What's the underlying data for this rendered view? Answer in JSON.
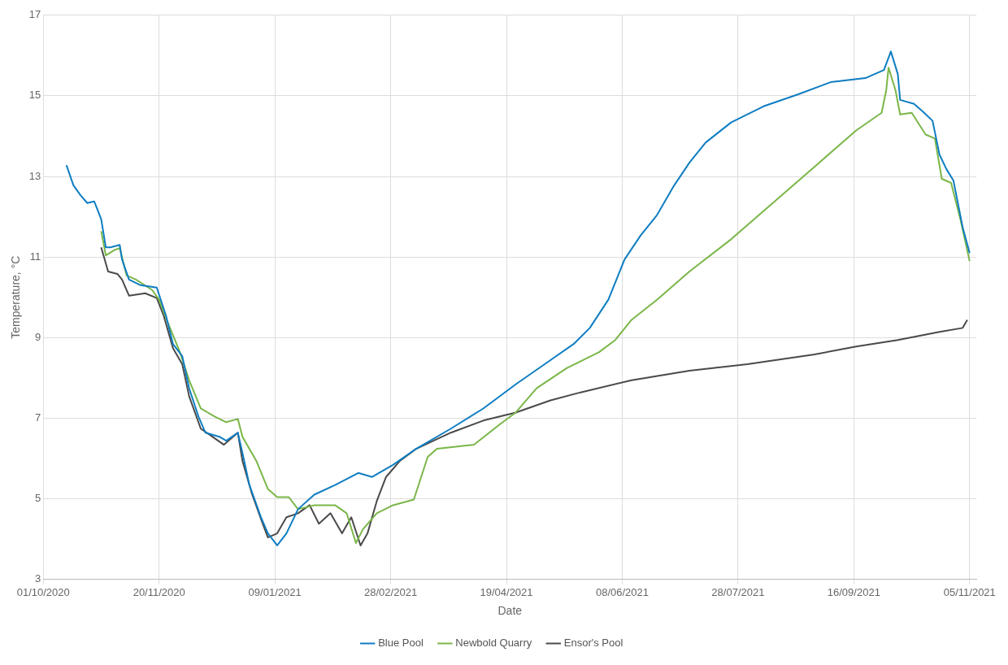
{
  "chart_data": {
    "type": "line",
    "xlabel": "Date",
    "ylabel": "Temperature, °C",
    "xlim": [
      "2020-10-01",
      "2021-11-08"
    ],
    "xticks": [
      {
        "value": "2020-10-01",
        "label": "01/10/2020"
      },
      {
        "value": "2020-11-20",
        "label": "20/11/2020"
      },
      {
        "value": "2021-01-09",
        "label": "09/01/2021"
      },
      {
        "value": "2021-02-28",
        "label": "28/02/2021"
      },
      {
        "value": "2021-04-19",
        "label": "19/04/2021"
      },
      {
        "value": "2021-06-08",
        "label": "08/06/2021"
      },
      {
        "value": "2021-07-28",
        "label": "28/07/2021"
      },
      {
        "value": "2021-09-16",
        "label": "16/09/2021"
      },
      {
        "value": "2021-11-05",
        "label": "05/11/2021"
      }
    ],
    "ylim": [
      3,
      17
    ],
    "yticks": [
      3,
      5,
      7,
      9,
      11,
      13,
      15,
      17
    ],
    "grid": true,
    "legend": "bottom",
    "marker": "none",
    "line_style": "solid",
    "series": [
      {
        "name": "Blue Pool",
        "color": "#0e7dc2",
        "x": [
          "2020-10-11",
          "2020-10-14",
          "2020-10-17",
          "2020-10-20",
          "2020-10-23",
          "2020-10-26",
          "2020-10-28",
          "2020-10-30",
          "2020-11-03",
          "2020-11-04",
          "2020-11-07",
          "2020-11-12",
          "2020-11-19",
          "2020-11-23",
          "2020-11-26",
          "2020-11-30",
          "2020-12-03",
          "2020-12-07",
          "2020-12-10",
          "2020-12-16",
          "2020-12-19",
          "2020-12-24",
          "2020-12-26",
          "2020-12-29",
          "2021-01-03",
          "2021-01-06",
          "2021-01-10",
          "2021-01-14",
          "2021-01-19",
          "2021-01-26",
          "2021-02-04",
          "2021-02-14",
          "2021-02-20",
          "2021-03-01",
          "2021-03-11",
          "2021-03-26",
          "2021-04-09",
          "2021-04-23",
          "2021-05-08",
          "2021-05-18",
          "2021-05-25",
          "2021-06-02",
          "2021-06-09",
          "2021-06-16",
          "2021-06-23",
          "2021-06-30",
          "2021-07-07",
          "2021-07-14",
          "2021-07-25",
          "2021-08-08",
          "2021-08-23",
          "2021-09-06",
          "2021-09-21",
          "2021-09-29",
          "2021-10-02",
          "2021-10-05",
          "2021-10-06",
          "2021-10-12",
          "2021-10-16",
          "2021-10-20",
          "2021-10-23",
          "2021-10-26",
          "2021-10-29",
          "2021-11-02",
          "2021-11-05"
        ],
        "values": [
          13.28,
          12.78,
          12.54,
          12.34,
          12.38,
          11.94,
          11.24,
          11.24,
          11.3,
          10.94,
          10.44,
          10.3,
          10.24,
          9.54,
          8.84,
          8.54,
          7.74,
          7.04,
          6.64,
          6.54,
          6.44,
          6.64,
          6.14,
          5.34,
          4.54,
          4.14,
          3.84,
          4.14,
          4.74,
          5.1,
          5.34,
          5.64,
          5.54,
          5.84,
          6.24,
          6.74,
          7.24,
          7.84,
          8.44,
          8.84,
          9.24,
          9.94,
          10.94,
          11.54,
          12.04,
          12.74,
          13.34,
          13.84,
          14.34,
          14.74,
          15.04,
          15.34,
          15.44,
          15.64,
          16.1,
          15.54,
          14.9,
          14.8,
          14.6,
          14.38,
          13.54,
          13.18,
          12.9,
          11.74,
          11.1
        ]
      },
      {
        "name": "Newbold Quarry",
        "color": "#7ab648",
        "x": [
          "2020-10-26",
          "2020-10-28",
          "2020-11-01",
          "2020-11-03",
          "2020-11-06",
          "2020-11-10",
          "2020-11-17",
          "2020-11-20",
          "2020-11-24",
          "2020-11-29",
          "2020-12-03",
          "2020-12-08",
          "2020-12-14",
          "2020-12-19",
          "2020-12-24",
          "2020-12-26",
          "2021-01-01",
          "2021-01-06",
          "2021-01-10",
          "2021-01-15",
          "2021-01-19",
          "2021-01-26",
          "2021-02-04",
          "2021-02-09",
          "2021-02-13",
          "2021-02-16",
          "2021-02-22",
          "2021-03-01",
          "2021-03-10",
          "2021-03-16",
          "2021-03-20",
          "2021-04-05",
          "2021-04-16",
          "2021-04-23",
          "2021-05-02",
          "2021-05-15",
          "2021-05-29",
          "2021-06-05",
          "2021-06-12",
          "2021-06-23",
          "2021-07-07",
          "2021-07-25",
          "2021-08-12",
          "2021-08-30",
          "2021-09-17",
          "2021-09-28",
          "2021-09-30",
          "2021-10-01",
          "2021-10-04",
          "2021-10-06",
          "2021-10-11",
          "2021-10-17",
          "2021-10-21",
          "2021-10-24",
          "2021-10-28",
          "2021-11-01",
          "2021-11-05"
        ],
        "values": [
          11.64,
          11.04,
          11.18,
          11.22,
          10.54,
          10.44,
          10.18,
          9.94,
          9.34,
          8.64,
          7.94,
          7.24,
          7.04,
          6.9,
          6.98,
          6.54,
          5.94,
          5.24,
          5.04,
          5.04,
          4.74,
          4.84,
          4.84,
          4.64,
          3.9,
          4.24,
          4.64,
          4.84,
          4.98,
          6.04,
          6.24,
          6.34,
          6.84,
          7.14,
          7.74,
          8.24,
          8.64,
          8.94,
          9.44,
          9.94,
          10.64,
          11.44,
          12.34,
          13.24,
          14.14,
          14.58,
          15.14,
          15.7,
          15.14,
          14.54,
          14.58,
          14.04,
          13.94,
          12.94,
          12.84,
          11.94,
          10.9
        ]
      },
      {
        "name": "Ensor's Pool",
        "color": "#4a4a4a",
        "x": [
          "2020-10-26",
          "2020-10-29",
          "2020-11-02",
          "2020-11-04",
          "2020-11-07",
          "2020-11-14",
          "2020-11-19",
          "2020-11-22",
          "2020-11-26",
          "2020-11-30",
          "2020-12-03",
          "2020-12-08",
          "2020-12-13",
          "2020-12-18",
          "2020-12-24",
          "2020-12-26",
          "2020-12-30",
          "2021-01-04",
          "2021-01-06",
          "2021-01-10",
          "2021-01-14",
          "2021-01-19",
          "2021-01-24",
          "2021-01-28",
          "2021-02-02",
          "2021-02-07",
          "2021-02-11",
          "2021-02-15",
          "2021-02-18",
          "2021-02-22",
          "2021-02-26",
          "2021-03-04",
          "2021-03-11",
          "2021-03-26",
          "2021-04-09",
          "2021-04-23",
          "2021-05-08",
          "2021-05-21",
          "2021-06-12",
          "2021-07-07",
          "2021-08-01",
          "2021-08-30",
          "2021-09-17",
          "2021-10-05",
          "2021-10-23",
          "2021-11-02",
          "2021-11-04"
        ],
        "values": [
          11.24,
          10.64,
          10.58,
          10.44,
          10.04,
          10.1,
          9.98,
          9.54,
          8.74,
          8.34,
          7.54,
          6.74,
          6.54,
          6.34,
          6.64,
          5.94,
          5.14,
          4.34,
          4.04,
          4.14,
          4.54,
          4.64,
          4.84,
          4.38,
          4.64,
          4.14,
          4.54,
          3.84,
          4.14,
          4.94,
          5.54,
          5.94,
          6.24,
          6.64,
          6.94,
          7.14,
          7.44,
          7.64,
          7.94,
          8.18,
          8.34,
          8.58,
          8.78,
          8.94,
          9.14,
          9.24,
          9.44
        ]
      }
    ]
  }
}
